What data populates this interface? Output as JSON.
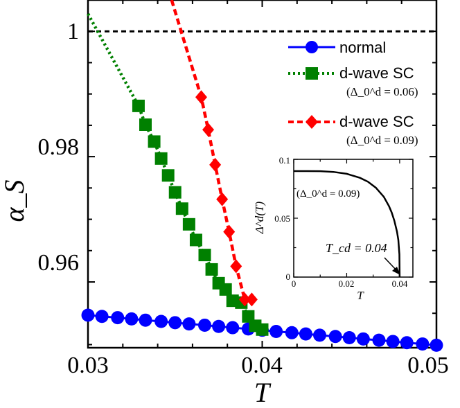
{
  "chart_data": [
    {
      "type": "line",
      "xlabel": "T",
      "ylabel": "α_S",
      "xlim": [
        0.03,
        0.05
      ],
      "ylim": [
        0.9495,
        1.005
      ],
      "x_ticks": [
        "0.03",
        "0.04",
        "0.05"
      ],
      "y_ticks": [
        "0.96",
        "0.98",
        "1"
      ],
      "grid": false,
      "legend_position": "right",
      "reference_line": {
        "y": 1.0,
        "style": "dashed",
        "color": "#000000"
      },
      "series": [
        {
          "name": "normal",
          "color": "#0000ff",
          "marker": "circle",
          "line": "solid",
          "x": [
            0.03,
            0.0308,
            0.0317,
            0.0325,
            0.0333,
            0.0342,
            0.035,
            0.0358,
            0.0367,
            0.0375,
            0.0383,
            0.0392,
            0.04,
            0.0408,
            0.0417,
            0.0425,
            0.0433,
            0.0442,
            0.045,
            0.0458,
            0.0467,
            0.0475,
            0.0483,
            0.0492,
            0.05
          ],
          "y": [
            0.9547,
            0.9545,
            0.9543,
            0.9541,
            0.9539,
            0.9537,
            0.9535,
            0.9533,
            0.9531,
            0.9529,
            0.9527,
            0.9525,
            0.9523,
            0.9521,
            0.9519,
            0.9517,
            0.9515,
            0.9513,
            0.9511,
            0.9509,
            0.9507,
            0.9505,
            0.9503,
            0.9501,
            0.9499
          ]
        },
        {
          "name": "d-wave SC",
          "subtitle": "(Δ_0^d = 0.06)",
          "color": "#008000",
          "marker": "square",
          "line": "dotted",
          "x": [
            0.03,
            0.0329,
            0.0333,
            0.0338,
            0.0342,
            0.0346,
            0.035,
            0.0354,
            0.0358,
            0.0362,
            0.0367,
            0.0371,
            0.0375,
            0.0379,
            0.0383,
            0.0388,
            0.0392,
            0.0396,
            0.04
          ],
          "y": [
            1.0028,
            0.9881,
            0.9851,
            0.9824,
            0.9797,
            0.977,
            0.9743,
            0.9717,
            0.9692,
            0.9667,
            0.9643,
            0.962,
            0.9598,
            0.9588,
            0.957,
            0.9567,
            0.9545,
            0.953,
            0.9524
          ]
        },
        {
          "name": "d-wave SC",
          "subtitle": "(Δ_0^d = 0.09)",
          "color": "#ff0000",
          "marker": "diamond",
          "line": "dashed",
          "x": [
            0.0348,
            0.0365,
            0.0369,
            0.0373,
            0.0377,
            0.0381,
            0.0385,
            0.039,
            0.0394
          ],
          "y": [
            1.005,
            0.9895,
            0.9843,
            0.9787,
            0.9732,
            0.968,
            0.9625,
            0.9572,
            0.9572
          ]
        }
      ]
    },
    {
      "type": "line",
      "role": "inset",
      "xlabel": "T",
      "ylabel": "Δ^d(T)",
      "xlim": [
        0,
        0.045
      ],
      "ylim": [
        0,
        0.1
      ],
      "x_ticks": [
        "0",
        "0.02",
        "0.04"
      ],
      "y_ticks": [
        "0",
        "0.05",
        "0.1"
      ],
      "annotation_label": "(Δ_0^d = 0.09)",
      "annotation_tcd": "T_cd = 0.04",
      "series": [
        {
          "color": "#000000",
          "x": [
            0,
            0.005,
            0.01,
            0.015,
            0.02,
            0.025,
            0.028,
            0.031,
            0.034,
            0.036,
            0.037,
            0.038,
            0.039,
            0.0395,
            0.0399,
            0.04
          ],
          "y": [
            0.09,
            0.09,
            0.0899,
            0.0893,
            0.0877,
            0.0843,
            0.081,
            0.0759,
            0.0682,
            0.0601,
            0.0548,
            0.0478,
            0.0385,
            0.0315,
            0.0194,
            0.0
          ]
        }
      ]
    }
  ]
}
